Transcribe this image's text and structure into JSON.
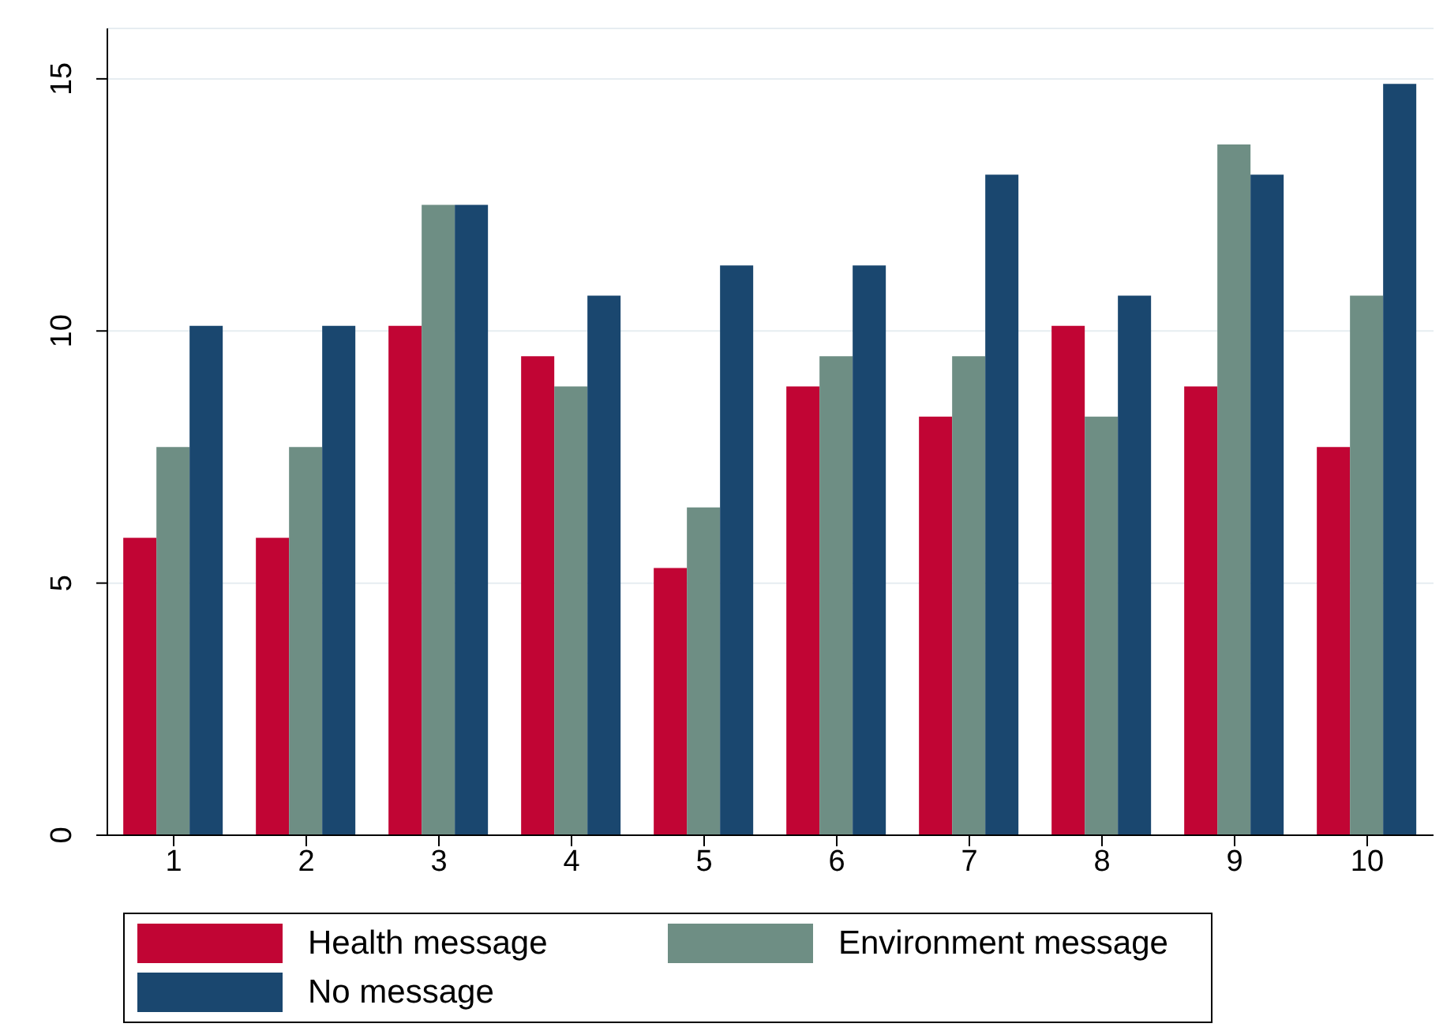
{
  "chart_data": {
    "type": "bar",
    "categories": [
      "1",
      "2",
      "3",
      "4",
      "5",
      "6",
      "7",
      "8",
      "9",
      "10"
    ],
    "series": [
      {
        "name": "Health message",
        "color": "#c10534",
        "values": [
          5.9,
          5.9,
          10.1,
          9.5,
          5.3,
          8.9,
          8.3,
          10.1,
          8.9,
          7.7
        ]
      },
      {
        "name": "Environment message",
        "color": "#6e8e84",
        "values": [
          7.7,
          7.7,
          12.5,
          8.9,
          6.5,
          9.5,
          9.5,
          8.3,
          13.7,
          10.7
        ]
      },
      {
        "name": "No message",
        "color": "#1a476f",
        "values": [
          10.1,
          10.1,
          12.5,
          10.7,
          11.3,
          11.3,
          13.1,
          10.7,
          13.1,
          14.9
        ]
      }
    ],
    "ylim": [
      0,
      16
    ],
    "yticks": [
      0,
      5,
      10,
      15
    ],
    "grid": "y",
    "legend": "bottom"
  }
}
